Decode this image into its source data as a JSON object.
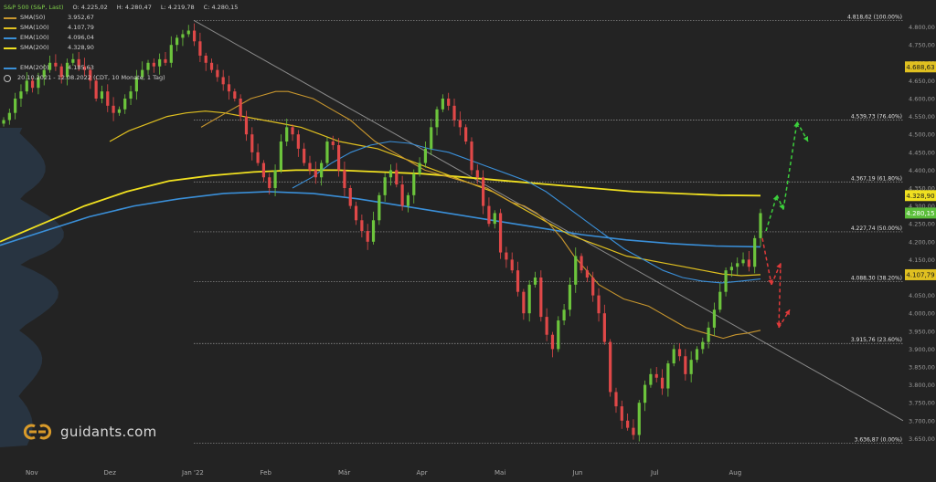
{
  "header": {
    "instrument": "S&P 500 (S&P, Last)",
    "ohlc": [
      "O: 4.225,02",
      "H: 4.280,47",
      "L: 4.219,78",
      "C: 4.280,15"
    ],
    "indicators": [
      {
        "name": "SMA(50)",
        "value": "3.952,67",
        "color": "#c8962e"
      },
      {
        "name": "SMA(100)",
        "value": "4.107,79",
        "color": "#e0c020"
      },
      {
        "name": "EMA(100)",
        "value": "4.096,04",
        "color": "#3a8fd8"
      },
      {
        "name": "SMA(200)",
        "value": "4.328,90",
        "color": "#f0e020"
      },
      {
        "name": "EMA(200)",
        "value": "4.185,63",
        "color": "#3a8fd8"
      }
    ],
    "meta": "20.10.2021 - 12.08.2022 (CDT, 10 Monate, 1 Tag)"
  },
  "branding": {
    "logo_text": "guidants.com",
    "logo_icon": "guidants-logo-icon"
  },
  "chart_data": {
    "type": "candlestick",
    "y_axis": {
      "min": 3600,
      "max": 4850,
      "ticks": [
        "3.650,00",
        "3.700,00",
        "3.750,00",
        "3.800,00",
        "3.850,00",
        "3.900,00",
        "3.950,00",
        "4.000,00",
        "4.050,00",
        "4.100,00",
        "4.150,00",
        "4.200,00",
        "4.250,00",
        "4.300,00",
        "4.350,00",
        "4.400,00",
        "4.450,00",
        "4.500,00",
        "4.550,00",
        "4.600,00",
        "4.650,00",
        "4.700,00",
        "4.750,00",
        "4.800,00"
      ]
    },
    "x_axis": {
      "labels": [
        "Nov",
        "Dez",
        "Jan '22",
        "Feb",
        "Mär",
        "Apr",
        "Mai",
        "Jun",
        "Jul",
        "Aug"
      ]
    },
    "fib_levels": [
      {
        "label": "4.818,62 (100.00%)",
        "value": 4818.62
      },
      {
        "label": "4.539,73 (76.40%)",
        "value": 4539.73
      },
      {
        "label": "4.367,19 (61.80%)",
        "value": 4367.19
      },
      {
        "label": "4.227,74 (50.00%)",
        "value": 4227.74
      },
      {
        "label": "4.088,30 (38.20%)",
        "value": 4088.3
      },
      {
        "label": "3.915,76 (23.60%)",
        "value": 3915.76
      },
      {
        "label": "3.636,87 (0.00%)",
        "value": 3636.87
      }
    ],
    "price_badges": [
      {
        "text": "4.688,63",
        "value": 4688.63,
        "color": "#e0c020",
        "text_color": "#1a1a1a"
      },
      {
        "text": "4.328,90",
        "value": 4328.9,
        "color": "#f0e020",
        "text_color": "#1a1a1a"
      },
      {
        "text": "4.280,15",
        "value": 4280.15,
        "color": "#5bbf3a",
        "text_color": "#ffffff"
      },
      {
        "text": "4.107,79",
        "value": 4107.79,
        "color": "#e0c020",
        "text_color": "#1a1a1a"
      }
    ],
    "trendline": [
      {
        "t": 0,
        "v": 4818.62
      },
      {
        "t": 1,
        "v": 3700
      }
    ],
    "closes": [
      4540,
      4560,
      4600,
      4620,
      4650,
      4630,
      4660,
      4680,
      4700,
      4690,
      4660,
      4700,
      4710,
      4690,
      4680,
      4650,
      4600,
      4620,
      4580,
      4560,
      4570,
      4600,
      4620,
      4660,
      4680,
      4700,
      4690,
      4710,
      4700,
      4750,
      4770,
      4780,
      4790,
      4760,
      4720,
      4700,
      4680,
      4660,
      4640,
      4620,
      4600,
      4550,
      4500,
      4450,
      4420,
      4380,
      4350,
      4400,
      4480,
      4520,
      4500,
      4460,
      4420,
      4400,
      4380,
      4420,
      4480,
      4470,
      4400,
      4350,
      4300,
      4260,
      4230,
      4200,
      4260,
      4330,
      4380,
      4400,
      4360,
      4300,
      4330,
      4390,
      4420,
      4460,
      4520,
      4570,
      4600,
      4580,
      4540,
      4520,
      4480,
      4400,
      4380,
      4300,
      4250,
      4280,
      4170,
      4150,
      4120,
      4060,
      4000,
      4080,
      4100,
      3990,
      3940,
      3900,
      3980,
      4010,
      4080,
      4160,
      4120,
      4100,
      4050,
      4000,
      3920,
      3780,
      3740,
      3700,
      3680,
      3660,
      3750,
      3800,
      3830,
      3820,
      3790,
      3860,
      3900,
      3880,
      3830,
      3870,
      3900,
      3920,
      3960,
      4010,
      4060,
      4120,
      4130,
      4140,
      4150,
      4130,
      4210,
      4280
    ],
    "sma50": [
      4520,
      4540,
      4560,
      4580,
      4600,
      4610,
      4620,
      4620,
      4610,
      4600,
      4580,
      4560,
      4540,
      4510,
      4480,
      4460,
      4440,
      4420,
      4400,
      4390,
      4380,
      4370,
      4360,
      4350,
      4330,
      4310,
      4300,
      4280,
      4250,
      4210,
      4160,
      4120,
      4080,
      4060,
      4040,
      4030,
      4020,
      4000,
      3980,
      3960,
      3950,
      3940,
      3930,
      3940,
      3945,
      3952.67
    ],
    "sma100": [
      4480,
      4510,
      4530,
      4550,
      4560,
      4565,
      4560,
      4550,
      4540,
      4530,
      4520,
      4500,
      4480,
      4470,
      4460,
      4440,
      4420,
      4400,
      4380,
      4360,
      4340,
      4310,
      4280,
      4250,
      4220,
      4200,
      4180,
      4160,
      4150,
      4140,
      4130,
      4120,
      4110,
      4105,
      4107.79
    ],
    "ema100": [
      4350,
      4380,
      4420,
      4450,
      4470,
      4480,
      4475,
      4460,
      4450,
      4430,
      4410,
      4390,
      4370,
      4340,
      4300,
      4260,
      4220,
      4180,
      4150,
      4120,
      4100,
      4090,
      4085,
      4090,
      4096.04
    ],
    "sma200": [
      4200,
      4250,
      4300,
      4340,
      4370,
      4385,
      4395,
      4400,
      4400,
      4395,
      4390,
      4380,
      4370,
      4360,
      4350,
      4340,
      4335,
      4330,
      4328.9
    ],
    "ema200": [
      4190,
      4230,
      4270,
      4300,
      4320,
      4335,
      4340,
      4335,
      4320,
      4300,
      4280,
      4260,
      4240,
      4220,
      4205,
      4195,
      4188,
      4185.63
    ]
  }
}
